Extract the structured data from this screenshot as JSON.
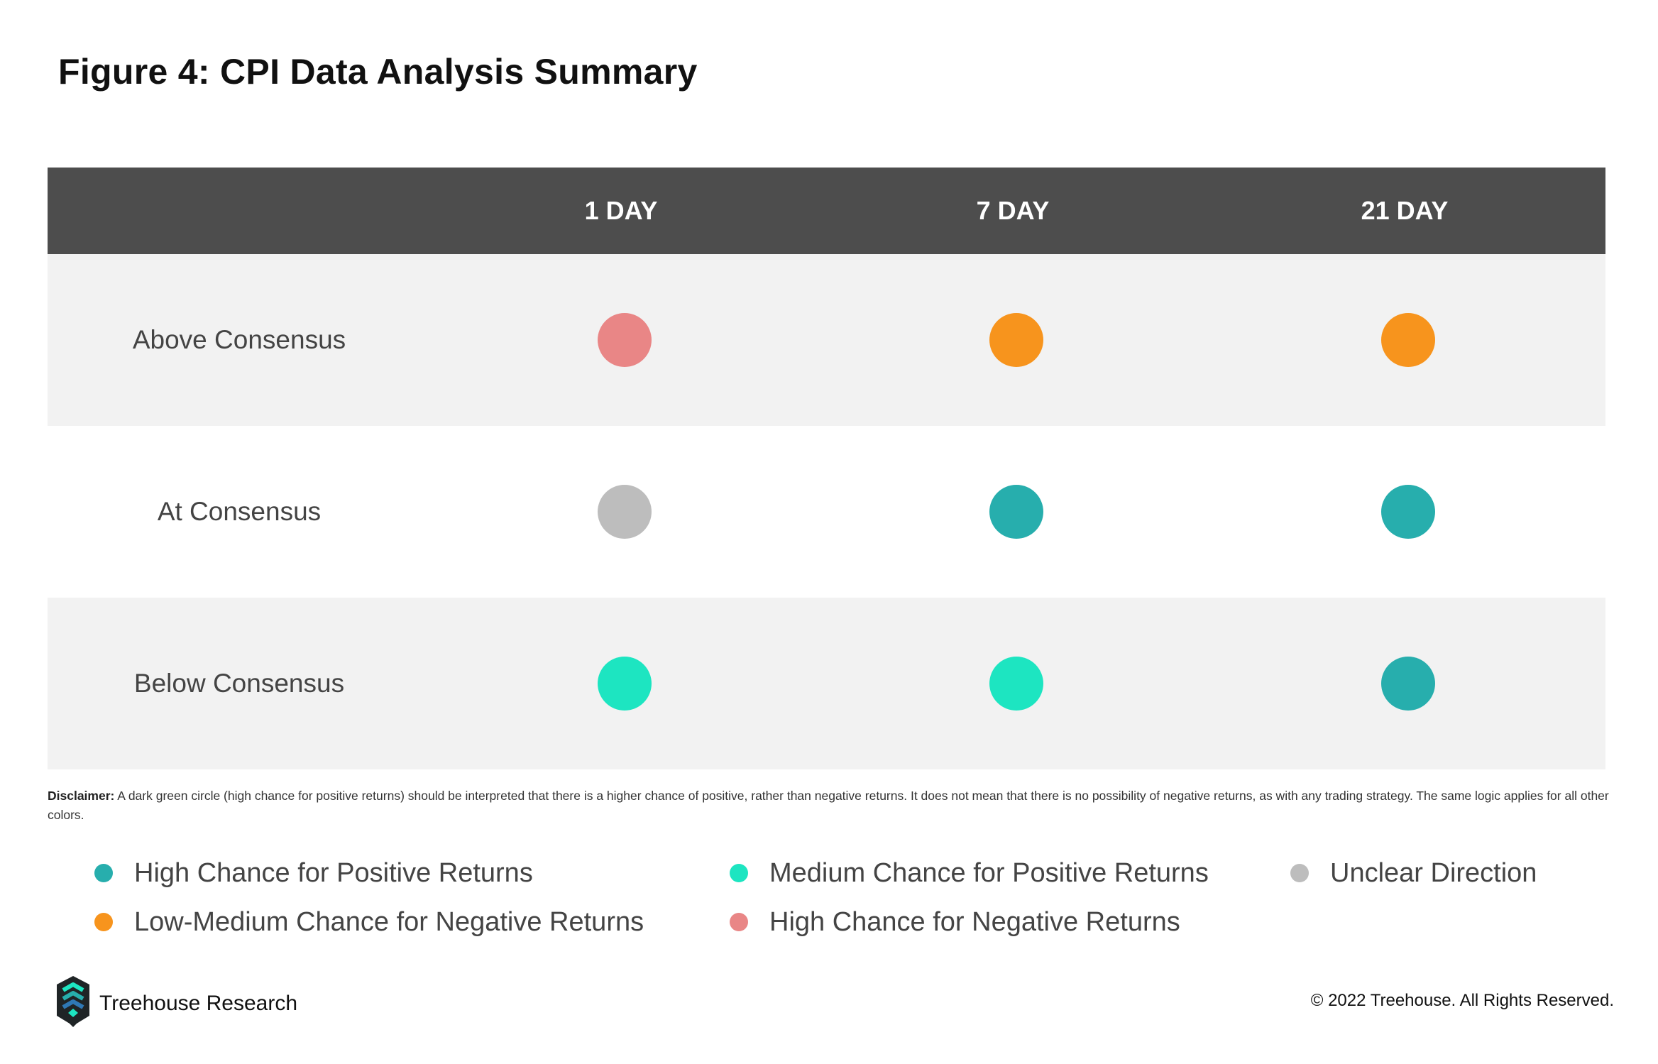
{
  "title": "Figure 4: CPI Data Analysis Summary",
  "colors": {
    "high_positive": "#27aead",
    "medium_positive": "#1de5c1",
    "unclear": "#bdbdbd",
    "low_medium_negative": "#f7941d",
    "high_negative": "#e98686",
    "header_bg": "#4d4d4d",
    "row_shade": "#f2f2f2"
  },
  "table": {
    "columns": [
      "1 DAY",
      "7 DAY",
      "21 DAY"
    ],
    "rows": [
      {
        "label": "Above Consensus",
        "values": [
          "high_negative",
          "low_medium_negative",
          "low_medium_negative"
        ]
      },
      {
        "label": "At Consensus",
        "values": [
          "unclear",
          "high_positive",
          "high_positive"
        ]
      },
      {
        "label": "Below Consensus",
        "values": [
          "medium_positive",
          "medium_positive",
          "high_positive"
        ]
      }
    ]
  },
  "disclaimer": {
    "label": "Disclaimer:",
    "text": " A dark green circle (high chance for positive returns) should be interpreted that there is a higher chance of positive, rather than negative returns. It does not mean that there is no possibility of negative returns, as with any trading strategy. The same logic applies for all other colors."
  },
  "legend": [
    {
      "key": "high_positive",
      "label": "High Chance for Positive Returns"
    },
    {
      "key": "medium_positive",
      "label": "Medium Chance for Positive Returns"
    },
    {
      "key": "unclear",
      "label": "Unclear Direction"
    },
    {
      "key": "low_medium_negative",
      "label": "Low-Medium Chance for Negative Returns"
    },
    {
      "key": "high_negative",
      "label": "High Chance for Negative Returns"
    }
  ],
  "footer": {
    "brand": "Treehouse Research",
    "logo_icon": "treehouse-logo-icon",
    "copyright": "© 2022 Treehouse. All Rights Reserved."
  }
}
